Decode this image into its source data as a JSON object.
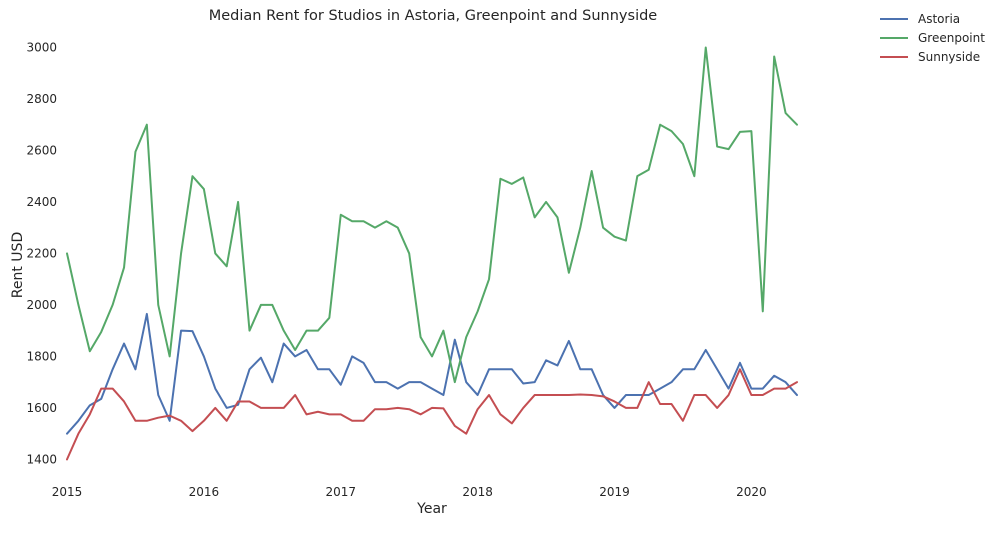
{
  "chart_data": {
    "type": "line",
    "title": "Median Rent for Studios in Astoria, Greenpoint and Sunnyside",
    "xlabel": "Year",
    "ylabel": "Rent USD",
    "x": [
      "2015-01",
      "2015-02",
      "2015-03",
      "2015-04",
      "2015-05",
      "2015-06",
      "2015-07",
      "2015-08",
      "2015-09",
      "2015-10",
      "2015-11",
      "2015-12",
      "2016-01",
      "2016-02",
      "2016-03",
      "2016-04",
      "2016-05",
      "2016-06",
      "2016-07",
      "2016-08",
      "2016-09",
      "2016-10",
      "2016-11",
      "2016-12",
      "2017-01",
      "2017-02",
      "2017-03",
      "2017-04",
      "2017-05",
      "2017-06",
      "2017-07",
      "2017-08",
      "2017-09",
      "2017-10",
      "2017-11",
      "2017-12",
      "2018-01",
      "2018-02",
      "2018-03",
      "2018-04",
      "2018-05",
      "2018-06",
      "2018-07",
      "2018-08",
      "2018-09",
      "2018-10",
      "2018-11",
      "2018-12",
      "2019-01",
      "2019-02",
      "2019-03",
      "2019-04",
      "2019-05",
      "2019-06",
      "2019-07",
      "2019-08",
      "2019-09",
      "2019-10",
      "2019-11",
      "2019-12",
      "2020-01",
      "2020-02",
      "2020-03",
      "2020-04",
      "2020-05"
    ],
    "xlim": [
      "2015-01",
      "2020-05"
    ],
    "x_ticks": [
      "2015",
      "2016",
      "2017",
      "2018",
      "2019",
      "2020"
    ],
    "ylim": [
      1320,
      3060
    ],
    "y_ticks": [
      1400,
      1600,
      1800,
      2000,
      2200,
      2400,
      2600,
      2800,
      3000
    ],
    "grid": false,
    "legend_position": "top-right outside",
    "series": [
      {
        "name": "Astoria",
        "color": "#4c72b0",
        "values": [
          1500,
          1550,
          1610,
          1635,
          1750,
          1850,
          1750,
          1965,
          1650,
          1550,
          1900,
          1898,
          1800,
          1675,
          1600,
          1612,
          1750,
          1795,
          1700,
          1850,
          1800,
          1825,
          1750,
          1750,
          1690,
          1800,
          1775,
          1700,
          1700,
          1675,
          1700,
          1700,
          1675,
          1650,
          1865,
          1700,
          1650,
          1750,
          1750,
          1750,
          1695,
          1700,
          1785,
          1765,
          1860,
          1750,
          1750,
          1650,
          1600,
          1650,
          1650,
          1650,
          1675,
          1700,
          1750,
          1750,
          1825,
          1750,
          1675,
          1775,
          1675,
          1675,
          1725,
          1700,
          1650
        ]
      },
      {
        "name": "Greenpoint",
        "color": "#55a868",
        "values": [
          2200,
          2000,
          1820,
          1895,
          2000,
          2145,
          2595,
          2700,
          2000,
          1800,
          2200,
          2500,
          2450,
          2200,
          2150,
          2400,
          1900,
          2000,
          2000,
          1900,
          1825,
          1900,
          1900,
          1950,
          2350,
          2325,
          2325,
          2300,
          2325,
          2300,
          2200,
          1875,
          1800,
          1900,
          1700,
          1875,
          1975,
          2100,
          2490,
          2470,
          2495,
          2340,
          2400,
          2340,
          2125,
          2300,
          2520,
          2300,
          2265,
          2250,
          2500,
          2525,
          2700,
          2675,
          2625,
          2500,
          3000,
          2615,
          2605,
          2672,
          2675,
          1975,
          2965,
          2745,
          2700
        ]
      },
      {
        "name": "Sunnyside",
        "color": "#c44e52",
        "values": [
          1400,
          1500,
          1575,
          1675,
          1675,
          1625,
          1550,
          1550,
          1562,
          1570,
          1550,
          1510,
          1550,
          1600,
          1550,
          1625,
          1625,
          1600,
          1600,
          1600,
          1650,
          1575,
          1585,
          1575,
          1575,
          1550,
          1550,
          1595,
          1595,
          1600,
          1595,
          1575,
          1600,
          1598,
          1530,
          1500,
          1595,
          1650,
          1575,
          1540,
          1600,
          1650,
          1650,
          1650,
          1650,
          1652,
          1650,
          1645,
          1625,
          1600,
          1600,
          1700,
          1615,
          1615,
          1550,
          1650,
          1650,
          1600,
          1650,
          1750,
          1650,
          1650,
          1675,
          1675,
          1700
        ]
      }
    ]
  }
}
